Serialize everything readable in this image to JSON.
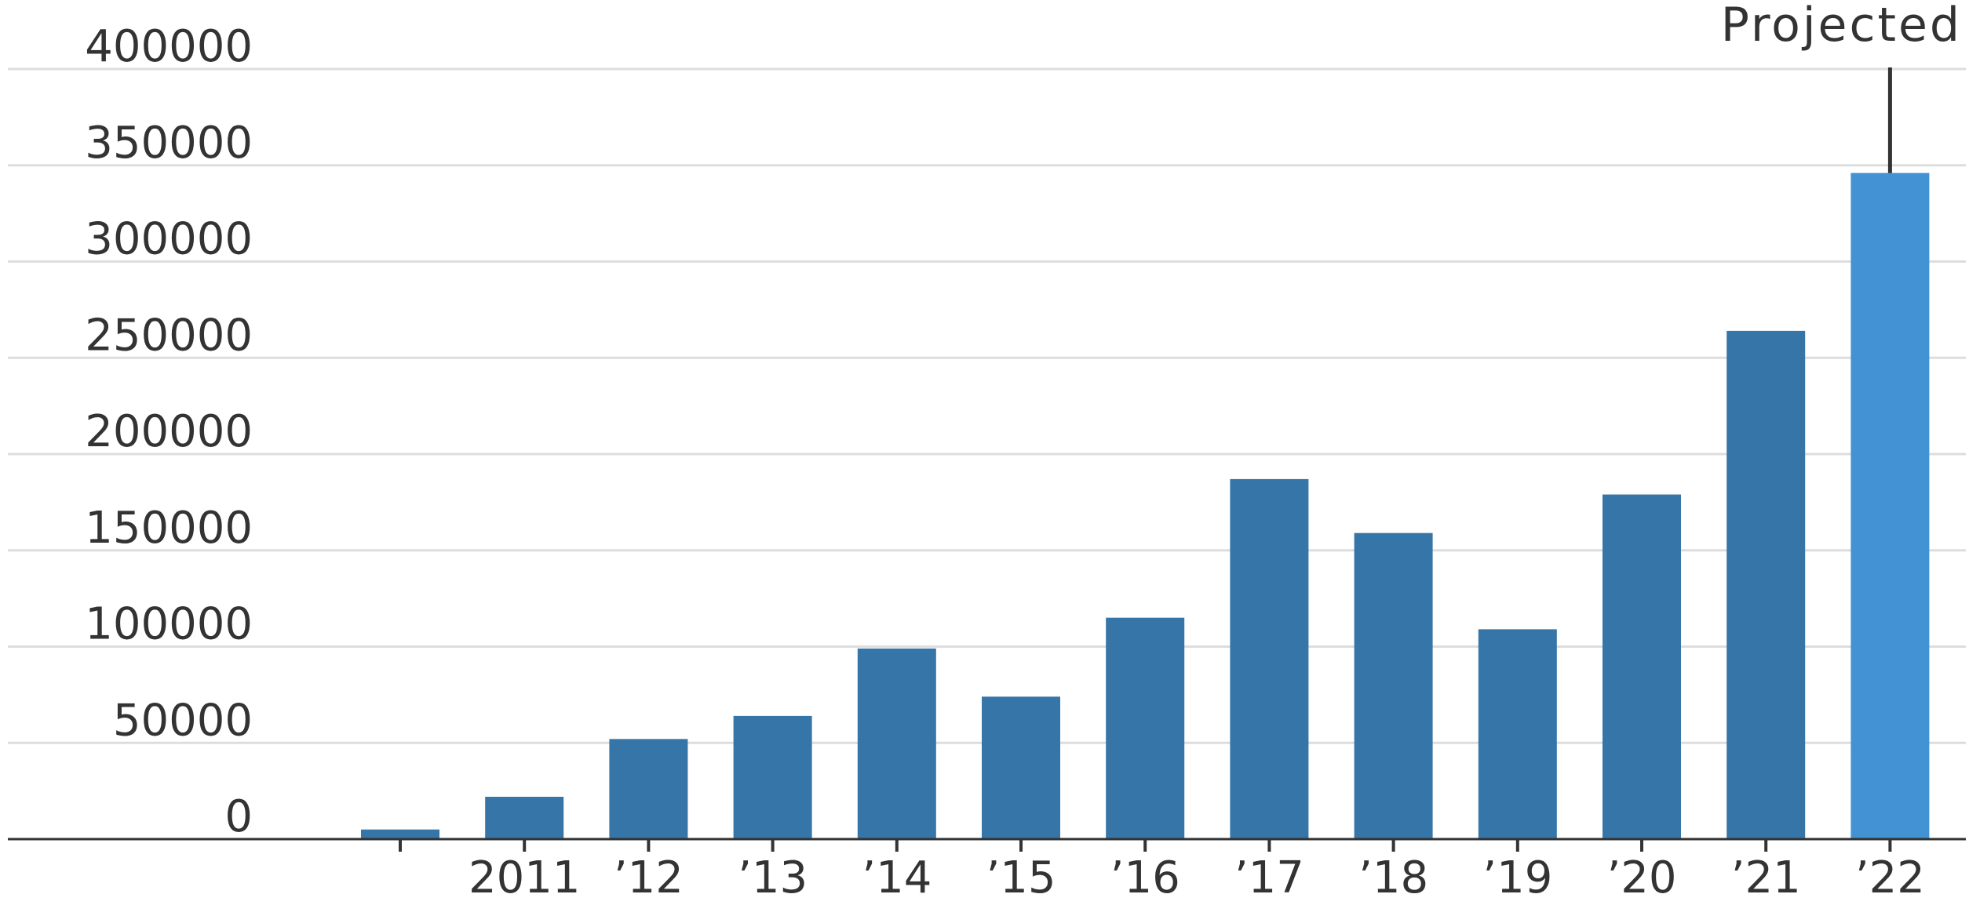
{
  "chart_data": {
    "type": "bar",
    "categories": [
      "",
      "2011",
      "’12",
      "’13",
      "’14",
      "’15",
      "’16",
      "’17",
      "’18",
      "’19",
      "’20",
      "’21",
      "’22"
    ],
    "values": [
      5000,
      22000,
      52000,
      64000,
      99000,
      74000,
      115000,
      187000,
      159000,
      109000,
      179000,
      264000,
      346000
    ],
    "ylim": [
      0,
      400000
    ],
    "yticks": [
      0,
      50000,
      100000,
      150000,
      200000,
      250000,
      300000,
      350000,
      400000
    ],
    "grid": true,
    "colors": {
      "bar": "#3575a8",
      "projected_bar": "#4392d3",
      "grid": "#dddddd",
      "axis": "#333333",
      "text": "#333333"
    },
    "annotation": {
      "text": "Projected",
      "category_index": 12
    },
    "title": "",
    "xlabel": "",
    "ylabel": ""
  }
}
